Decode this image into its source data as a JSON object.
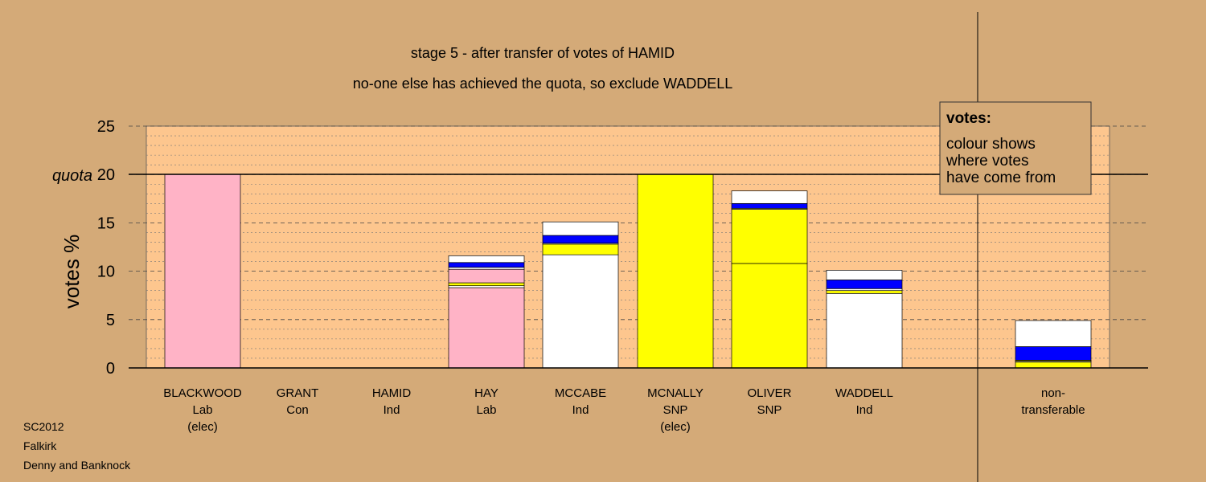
{
  "chart_data": {
    "type": "bar",
    "stacked": true,
    "title": "stage 5 - after transfer of votes of HAMID",
    "subtitle": "no-one else has achieved the quota, so exclude WADDELL",
    "ylabel": "votes %",
    "ylim": [
      0,
      25
    ],
    "yticks": [
      "0",
      "5",
      "10",
      "15",
      "20",
      "25"
    ],
    "quota_value": 20,
    "quota_label": "quota",
    "grid": true,
    "categories": [
      {
        "name": "BLACKWOOD",
        "party": "Lab",
        "note": "(elec)"
      },
      {
        "name": "GRANT",
        "party": "Con",
        "note": ""
      },
      {
        "name": "HAMID",
        "party": "Ind",
        "note": ""
      },
      {
        "name": "HAY",
        "party": "Lab",
        "note": ""
      },
      {
        "name": "MCCABE",
        "party": "Ind",
        "note": ""
      },
      {
        "name": "MCNALLY",
        "party": "SNP",
        "note": "(elec)"
      },
      {
        "name": "OLIVER",
        "party": "SNP",
        "note": ""
      },
      {
        "name": "WADDELL",
        "party": "Ind",
        "note": ""
      },
      {
        "name": "non-",
        "party": "transferable",
        "note": ""
      }
    ],
    "bars": [
      {
        "segments": [
          {
            "color": "#ffb3c6",
            "value": 20.0
          }
        ]
      },
      {
        "segments": []
      },
      {
        "segments": []
      },
      {
        "segments": [
          {
            "color": "#ffb3c6",
            "value": 8.3
          },
          {
            "color": "#ffffff",
            "value": 0.2
          },
          {
            "color": "#ffff00",
            "value": 0.3
          },
          {
            "color": "#ffb3c6",
            "value": 1.4
          },
          {
            "color": "#ffffff",
            "value": 0.2
          },
          {
            "color": "#0000ff",
            "value": 0.5
          },
          {
            "color": "#ffffff",
            "value": 0.7
          }
        ]
      },
      {
        "segments": [
          {
            "color": "#ffffff",
            "value": 11.7
          },
          {
            "color": "#ffff00",
            "value": 1.1
          },
          {
            "color": "#ffffff",
            "value": 0.1
          },
          {
            "color": "#0000ff",
            "value": 0.8
          },
          {
            "color": "#ffffff",
            "value": 1.4
          }
        ]
      },
      {
        "segments": [
          {
            "color": "#ffff00",
            "value": 20.0
          }
        ]
      },
      {
        "segments": [
          {
            "color": "#ffff00",
            "value": 10.8
          },
          {
            "color": "#ffff00",
            "value": 5.6
          },
          {
            "color": "#ffffff",
            "value": 0.1
          },
          {
            "color": "#0000ff",
            "value": 0.5
          },
          {
            "color": "#ffffff",
            "value": 1.3
          }
        ]
      },
      {
        "segments": [
          {
            "color": "#ffffff",
            "value": 7.7
          },
          {
            "color": "#ffff00",
            "value": 0.3
          },
          {
            "color": "#ffffff",
            "value": 0.2
          },
          {
            "color": "#0000ff",
            "value": 0.9
          },
          {
            "color": "#ffffff",
            "value": 1.0
          }
        ]
      },
      {
        "segments": [
          {
            "color": "#ffff00",
            "value": 0.6
          },
          {
            "color": "#ffffff",
            "value": 0.1
          },
          {
            "color": "#ffff00",
            "value": 0.1
          },
          {
            "color": "#0000ff",
            "value": 1.4
          },
          {
            "color": "#ffffff",
            "value": 2.7
          }
        ]
      }
    ],
    "legend": {
      "title": "votes:",
      "lines": [
        "colour shows",
        "where votes",
        "have come from"
      ],
      "position": "top-right"
    },
    "footer": [
      "SC2012",
      "Falkirk",
      "Denny and Banknock"
    ],
    "colors": {
      "background": "#d4aa78",
      "plot_area": "#fdc68e",
      "lab": "#ffb3c6",
      "snp": "#ffff00",
      "other": "#0000ff",
      "ind": "#ffffff"
    }
  }
}
